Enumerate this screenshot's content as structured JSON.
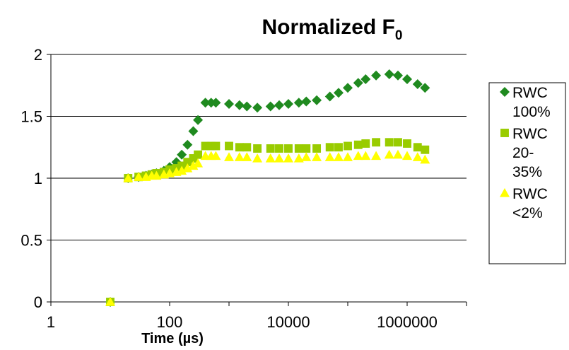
{
  "chart_data": {
    "type": "scatter",
    "title": "Normalized F",
    "title_subscript": "0",
    "xlabel": "Time (µs)",
    "ylabel": "",
    "x_scale": "log",
    "xlim": [
      1,
      10000000
    ],
    "ylim": [
      0,
      2
    ],
    "x_ticks": [
      1,
      100,
      10000,
      1000000
    ],
    "x_tick_labels": [
      "1",
      "100",
      "10000",
      "1000000"
    ],
    "y_ticks": [
      0,
      0.5,
      1,
      1.5,
      2
    ],
    "y_tick_labels": [
      "0",
      "0.5",
      "1",
      "1.5",
      "2"
    ],
    "grid": "horizontal",
    "legend_position": "right",
    "series": [
      {
        "name": "RWC 100%",
        "legend_lines": [
          "RWC",
          "100%"
        ],
        "marker": "diamond",
        "color": "#1f8a1f",
        "x": [
          10,
          20,
          30,
          40,
          50,
          60,
          80,
          100,
          130,
          160,
          200,
          250,
          300,
          400,
          500,
          600,
          1000,
          1500,
          2000,
          3000,
          5000,
          7000,
          10000,
          15000,
          20000,
          30000,
          50000,
          70000,
          100000,
          150000,
          200000,
          300000,
          500000,
          700000,
          1000000,
          1500000,
          2000000
        ],
        "y": [
          0,
          1.0,
          1.01,
          1.02,
          1.03,
          1.04,
          1.06,
          1.09,
          1.13,
          1.19,
          1.27,
          1.38,
          1.47,
          1.61,
          1.61,
          1.61,
          1.6,
          1.59,
          1.58,
          1.57,
          1.58,
          1.59,
          1.6,
          1.61,
          1.62,
          1.63,
          1.66,
          1.69,
          1.73,
          1.77,
          1.8,
          1.83,
          1.84,
          1.83,
          1.8,
          1.76,
          1.73
        ]
      },
      {
        "name": "RWC 20-35%",
        "legend_lines": [
          "RWC",
          "20-",
          "35%"
        ],
        "marker": "square",
        "color": "#99cc00",
        "x": [
          10,
          20,
          30,
          40,
          50,
          60,
          80,
          100,
          130,
          160,
          200,
          250,
          300,
          400,
          500,
          600,
          1000,
          1500,
          2000,
          3000,
          5000,
          7000,
          10000,
          15000,
          20000,
          30000,
          50000,
          70000,
          100000,
          150000,
          200000,
          300000,
          500000,
          700000,
          1000000,
          1500000,
          2000000
        ],
        "y": [
          0,
          1.0,
          1.01,
          1.02,
          1.03,
          1.04,
          1.05,
          1.07,
          1.08,
          1.1,
          1.13,
          1.16,
          1.19,
          1.26,
          1.26,
          1.26,
          1.26,
          1.25,
          1.25,
          1.24,
          1.24,
          1.24,
          1.24,
          1.24,
          1.24,
          1.24,
          1.25,
          1.25,
          1.26,
          1.27,
          1.28,
          1.29,
          1.29,
          1.29,
          1.28,
          1.25,
          1.23
        ]
      },
      {
        "name": "RWC <2%",
        "legend_lines": [
          "RWC",
          "<2%"
        ],
        "marker": "triangle",
        "color": "#ffff00",
        "x": [
          10,
          20,
          30,
          40,
          50,
          60,
          80,
          100,
          130,
          160,
          200,
          250,
          300,
          400,
          500,
          600,
          1000,
          1500,
          2000,
          3000,
          5000,
          7000,
          10000,
          15000,
          20000,
          30000,
          50000,
          70000,
          100000,
          150000,
          200000,
          300000,
          500000,
          700000,
          1000000,
          1500000,
          2000000
        ],
        "y": [
          0,
          1.0,
          1.01,
          1.01,
          1.02,
          1.02,
          1.03,
          1.04,
          1.05,
          1.06,
          1.08,
          1.1,
          1.12,
          1.18,
          1.18,
          1.18,
          1.17,
          1.17,
          1.17,
          1.16,
          1.16,
          1.16,
          1.16,
          1.16,
          1.17,
          1.17,
          1.17,
          1.17,
          1.17,
          1.18,
          1.18,
          1.18,
          1.19,
          1.19,
          1.18,
          1.17,
          1.15
        ]
      }
    ]
  }
}
